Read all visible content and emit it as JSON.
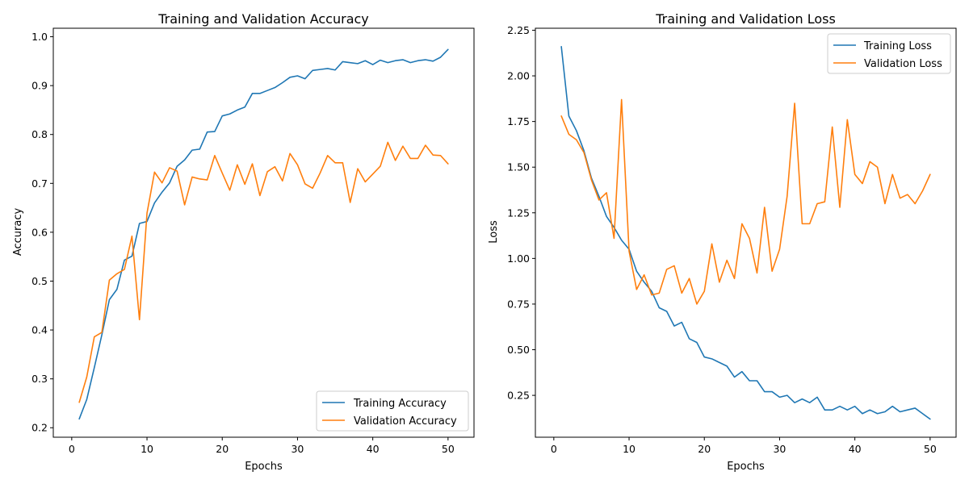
{
  "colors": {
    "series_1": "#1f77b4",
    "series_2": "#ff7f0e"
  },
  "chart_data": [
    {
      "type": "line",
      "title": "Training and Validation Accuracy",
      "xlabel": "Epochs",
      "ylabel": "Accuracy",
      "xlim": [
        -2.45,
        53.45
      ],
      "ylim": [
        0.1806,
        1.0174
      ],
      "xticks": [
        0,
        10,
        20,
        30,
        40,
        50
      ],
      "yticks": [
        0.2,
        0.3,
        0.4,
        0.5,
        0.6,
        0.7,
        0.8,
        0.9,
        1.0
      ],
      "ytick_labels": [
        "0.2",
        "0.3",
        "0.4",
        "0.5",
        "0.6",
        "0.7",
        "0.8",
        "0.9",
        "1.0"
      ],
      "legend_position": "lower right",
      "x": [
        1,
        2,
        3,
        4,
        5,
        6,
        7,
        8,
        9,
        10,
        11,
        12,
        13,
        14,
        15,
        16,
        17,
        18,
        19,
        20,
        21,
        22,
        23,
        24,
        25,
        26,
        27,
        28,
        29,
        30,
        31,
        32,
        33,
        34,
        35,
        36,
        37,
        38,
        39,
        40,
        41,
        42,
        43,
        44,
        45,
        46,
        47,
        48,
        49,
        50
      ],
      "series": [
        {
          "name": "Training Accuracy",
          "color": "#1f77b4",
          "values": [
            0.218,
            0.258,
            0.323,
            0.39,
            0.462,
            0.483,
            0.543,
            0.551,
            0.618,
            0.622,
            0.66,
            0.682,
            0.701,
            0.735,
            0.748,
            0.768,
            0.77,
            0.805,
            0.806,
            0.838,
            0.842,
            0.85,
            0.856,
            0.884,
            0.884,
            0.89,
            0.896,
            0.906,
            0.917,
            0.92,
            0.914,
            0.931,
            0.933,
            0.935,
            0.932,
            0.949,
            0.947,
            0.945,
            0.951,
            0.943,
            0.952,
            0.947,
            0.951,
            0.953,
            0.947,
            0.951,
            0.953,
            0.95,
            0.958,
            0.974
          ]
        },
        {
          "name": "Validation Accuracy",
          "color": "#ff7f0e",
          "values": [
            0.252,
            0.304,
            0.386,
            0.395,
            0.502,
            0.515,
            0.524,
            0.592,
            0.421,
            0.639,
            0.723,
            0.701,
            0.732,
            0.725,
            0.656,
            0.713,
            0.709,
            0.707,
            0.757,
            0.721,
            0.686,
            0.738,
            0.698,
            0.74,
            0.675,
            0.724,
            0.734,
            0.705,
            0.761,
            0.738,
            0.699,
            0.69,
            0.721,
            0.757,
            0.742,
            0.742,
            0.661,
            0.73,
            0.703,
            0.719,
            0.735,
            0.784,
            0.747,
            0.776,
            0.751,
            0.751,
            0.778,
            0.758,
            0.757,
            0.74
          ]
        }
      ]
    },
    {
      "type": "line",
      "title": "Training and Validation Loss",
      "xlabel": "Epochs",
      "ylabel": "Loss",
      "xlim": [
        -2.45,
        53.45
      ],
      "ylim": [
        0.0207,
        2.2609
      ],
      "xticks": [
        0,
        10,
        20,
        30,
        40,
        50
      ],
      "yticks": [
        0.25,
        0.5,
        0.75,
        1.0,
        1.25,
        1.5,
        1.75,
        2.0,
        2.25
      ],
      "ytick_labels": [
        "0.25",
        "0.50",
        "0.75",
        "1.00",
        "1.25",
        "1.50",
        "1.75",
        "2.00",
        "2.25"
      ],
      "legend_position": "upper right",
      "x": [
        1,
        2,
        3,
        4,
        5,
        6,
        7,
        8,
        9,
        10,
        11,
        12,
        13,
        14,
        15,
        16,
        17,
        18,
        19,
        20,
        21,
        22,
        23,
        24,
        25,
        26,
        27,
        28,
        29,
        30,
        31,
        32,
        33,
        34,
        35,
        36,
        37,
        38,
        39,
        40,
        41,
        42,
        43,
        44,
        45,
        46,
        47,
        48,
        49,
        50
      ],
      "series": [
        {
          "name": "Training Loss",
          "color": "#1f77b4",
          "values": [
            2.16,
            1.78,
            1.7,
            1.59,
            1.44,
            1.34,
            1.23,
            1.17,
            1.1,
            1.05,
            0.93,
            0.87,
            0.82,
            0.73,
            0.71,
            0.63,
            0.65,
            0.56,
            0.54,
            0.46,
            0.45,
            0.43,
            0.41,
            0.35,
            0.38,
            0.33,
            0.33,
            0.27,
            0.27,
            0.24,
            0.25,
            0.21,
            0.23,
            0.21,
            0.24,
            0.17,
            0.17,
            0.19,
            0.17,
            0.19,
            0.15,
            0.17,
            0.15,
            0.16,
            0.19,
            0.16,
            0.17,
            0.18,
            0.15,
            0.12
          ]
        },
        {
          "name": "Validation Loss",
          "color": "#ff7f0e",
          "values": [
            1.78,
            1.68,
            1.65,
            1.58,
            1.43,
            1.32,
            1.36,
            1.11,
            1.87,
            1.04,
            0.83,
            0.91,
            0.8,
            0.81,
            0.94,
            0.96,
            0.81,
            0.89,
            0.75,
            0.82,
            1.08,
            0.87,
            0.99,
            0.89,
            1.19,
            1.11,
            0.92,
            1.28,
            0.93,
            1.05,
            1.34,
            1.85,
            1.19,
            1.19,
            1.3,
            1.31,
            1.72,
            1.28,
            1.76,
            1.46,
            1.41,
            1.53,
            1.5,
            1.3,
            1.46,
            1.33,
            1.35,
            1.3,
            1.37,
            1.46
          ]
        }
      ]
    }
  ]
}
